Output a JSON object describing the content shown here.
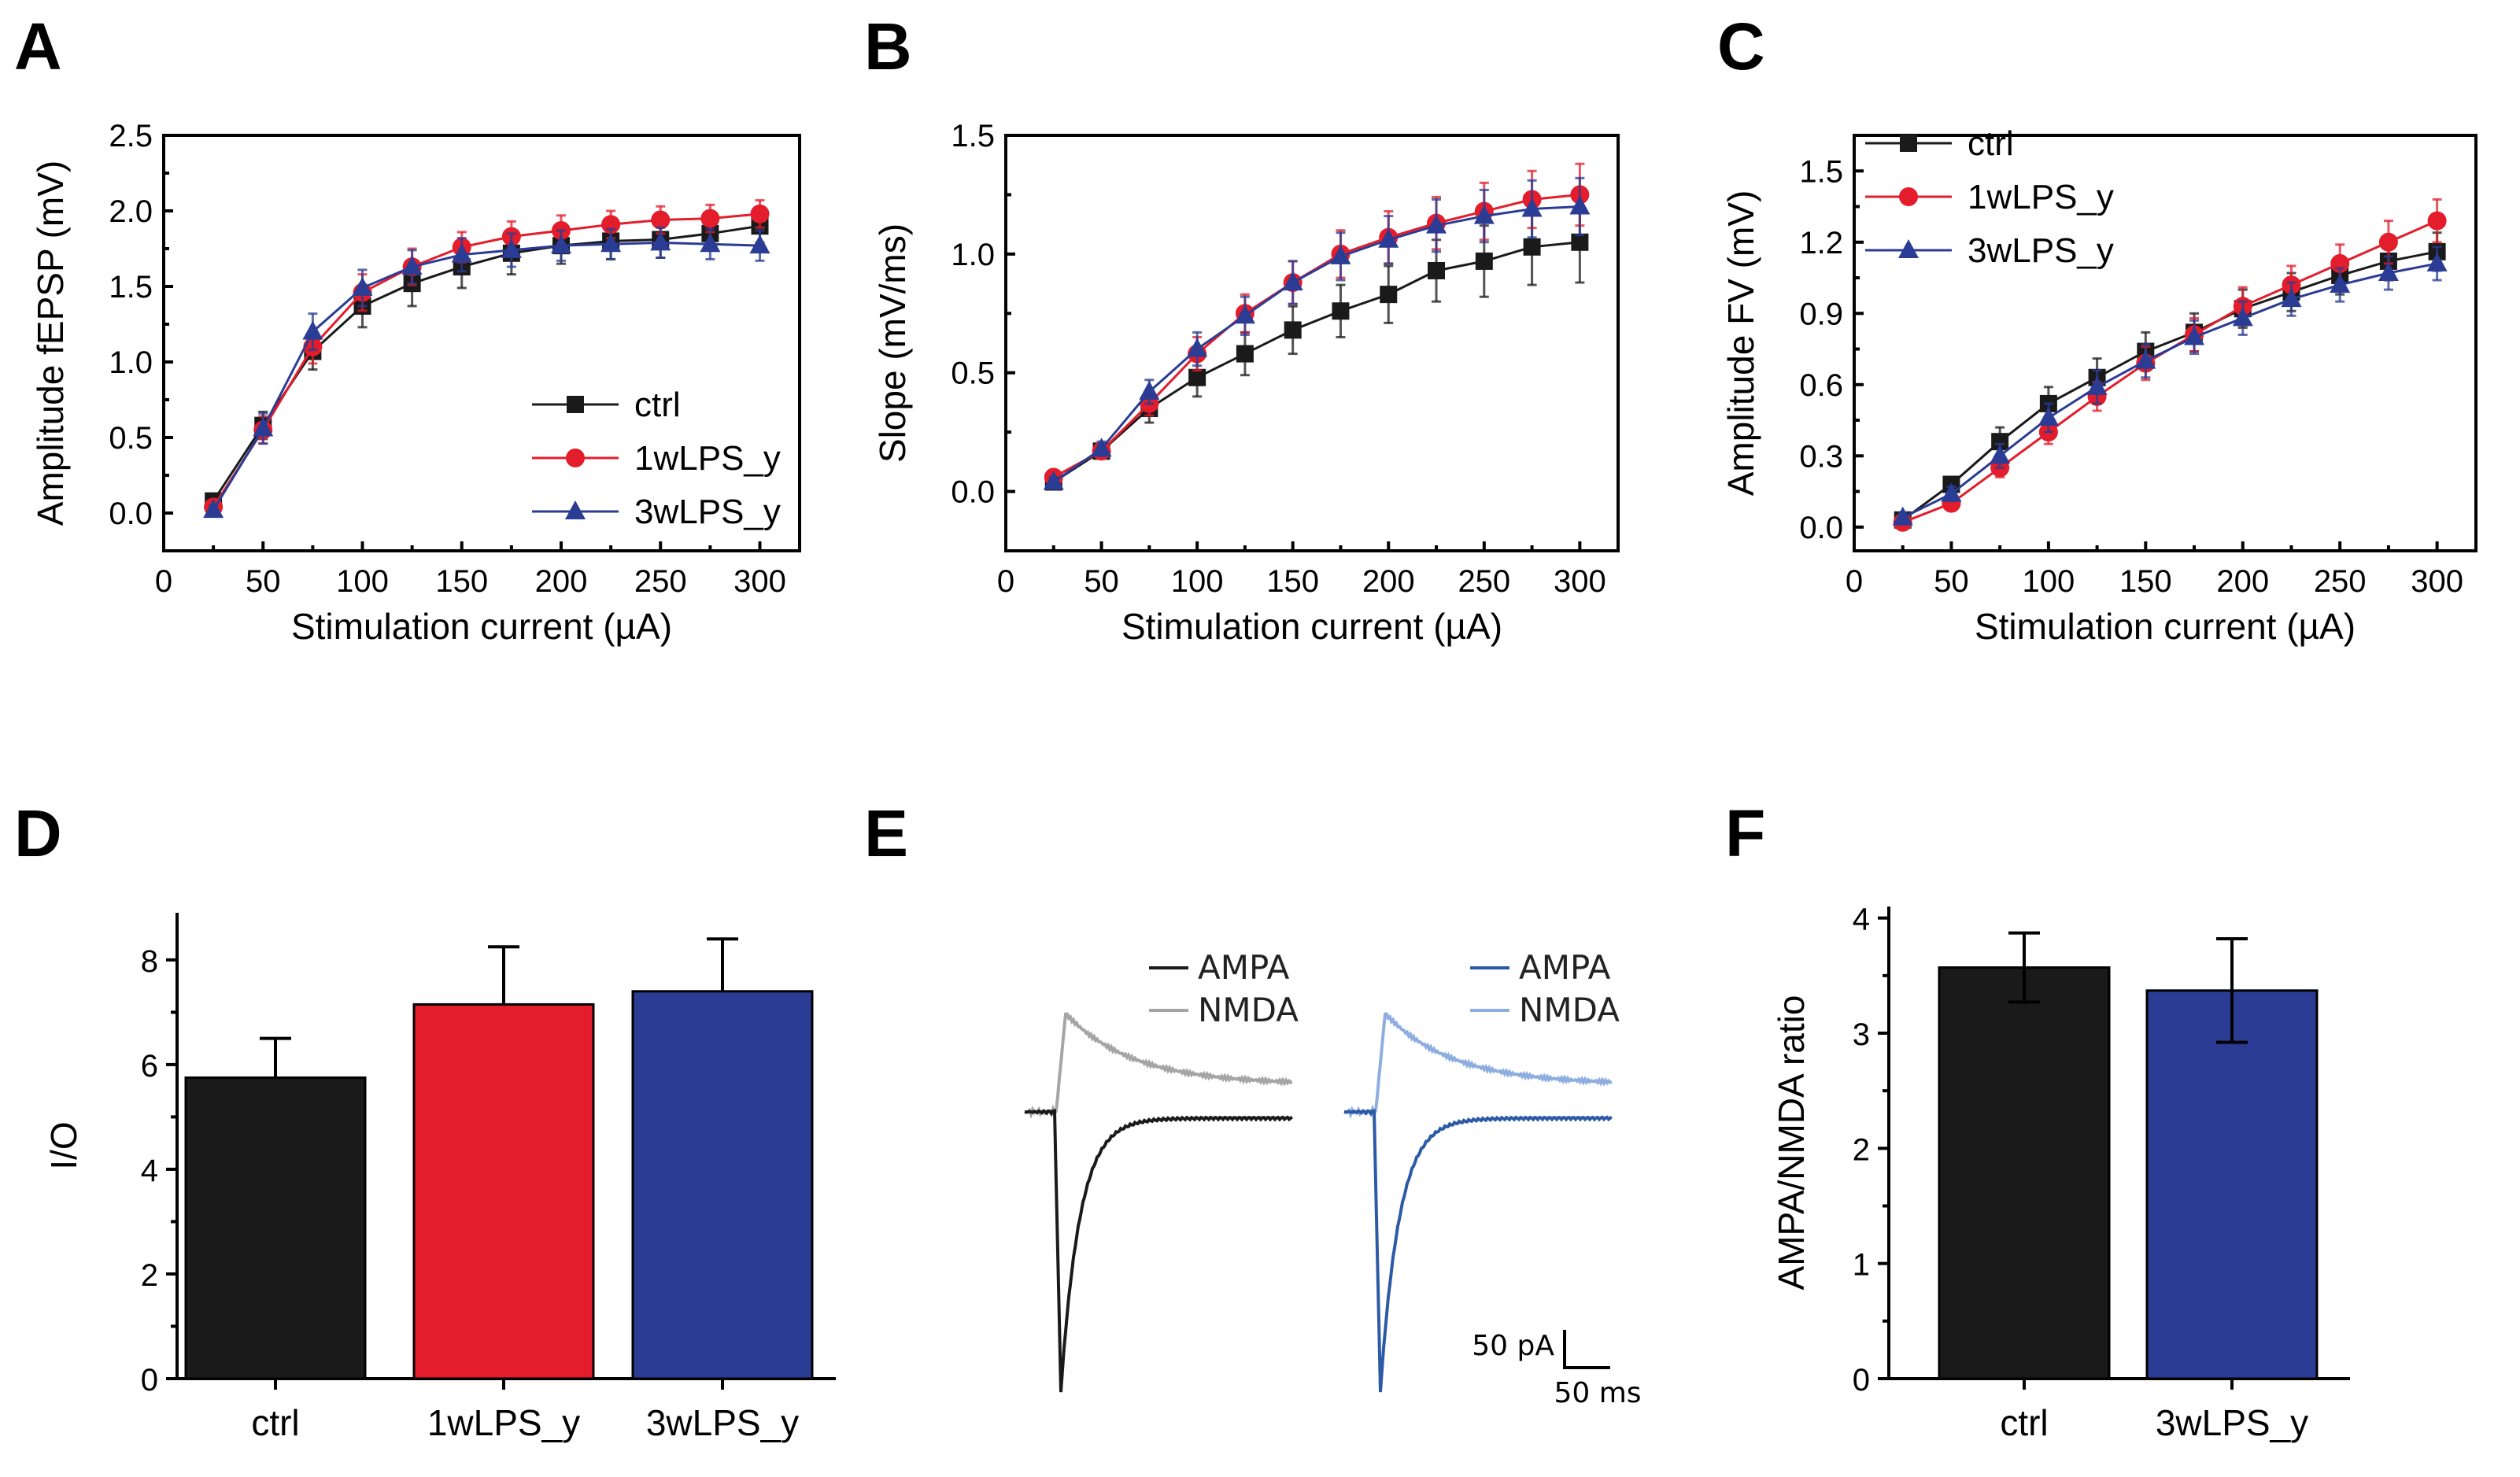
{
  "colors": {
    "ctrl": "#1a1a1a",
    "wk1": "#e31d2b",
    "wk3": "#2a3c94",
    "gray_nmda": "#a5a5a5",
    "lightblue_nmda": "#8faee0",
    "blue_ampa": "#2d5aa6"
  },
  "chart_data": [
    {
      "id": "A",
      "letter": "A",
      "type": "line",
      "xlabel": "Stimulation current (µA)",
      "ylabel": "Amplitude fEPSP (mV)",
      "xlim": [
        0,
        320
      ],
      "ylim": [
        -0.25,
        2.5
      ],
      "xticks": [
        0,
        50,
        100,
        150,
        200,
        250,
        300
      ],
      "xtick_labels": [
        "0",
        "50",
        "100",
        "150",
        "200",
        "250",
        "300"
      ],
      "yticks": [
        0,
        0.5,
        1,
        1.5,
        2,
        2.5
      ],
      "ytick_labels": [
        "0.0",
        "0.5",
        "1.0",
        "1.5",
        "2.0",
        "2.5"
      ],
      "x": [
        25,
        50,
        75,
        100,
        125,
        150,
        175,
        200,
        225,
        250,
        275,
        300
      ],
      "series": [
        {
          "name": "ctrl",
          "color_key": "ctrl",
          "marker": "square",
          "values": [
            0.08,
            0.58,
            1.07,
            1.37,
            1.52,
            1.63,
            1.72,
            1.77,
            1.8,
            1.81,
            1.85,
            1.9
          ],
          "errors": [
            0.03,
            0.09,
            0.12,
            0.14,
            0.15,
            0.14,
            0.14,
            0.12,
            0.12,
            0.12,
            0.11,
            0.11
          ]
        },
        {
          "name": "1wLPS_y",
          "color_key": "wk1",
          "marker": "circle",
          "values": [
            0.04,
            0.55,
            1.1,
            1.46,
            1.63,
            1.76,
            1.83,
            1.87,
            1.91,
            1.94,
            1.95,
            1.98
          ],
          "errors": [
            0.03,
            0.09,
            0.11,
            0.12,
            0.12,
            0.1,
            0.1,
            0.1,
            0.09,
            0.09,
            0.09,
            0.09
          ]
        },
        {
          "name": "3wLPS_y",
          "color_key": "wk3",
          "marker": "triangle",
          "values": [
            0.02,
            0.56,
            1.2,
            1.49,
            1.63,
            1.71,
            1.74,
            1.77,
            1.78,
            1.79,
            1.78,
            1.77
          ],
          "errors": [
            0.03,
            0.1,
            0.12,
            0.12,
            0.11,
            0.11,
            0.11,
            0.1,
            0.1,
            0.1,
            0.1,
            0.1
          ]
        }
      ],
      "legend_pos": "lower-right"
    },
    {
      "id": "B",
      "letter": "B",
      "type": "line",
      "xlabel": "Stimulation current (µA)",
      "ylabel": "Slope (mV/ms)",
      "xlim": [
        0,
        320
      ],
      "ylim": [
        -0.25,
        1.5
      ],
      "xticks": [
        0,
        50,
        100,
        150,
        200,
        250,
        300
      ],
      "xtick_labels": [
        "0",
        "50",
        "100",
        "150",
        "200",
        "250",
        "300"
      ],
      "yticks": [
        0,
        0.5,
        1,
        1.5
      ],
      "ytick_labels": [
        "0.0",
        "0.5",
        "1.0",
        "1.5"
      ],
      "x": [
        25,
        50,
        75,
        100,
        125,
        150,
        175,
        200,
        225,
        250,
        275,
        300
      ],
      "series": [
        {
          "name": "ctrl",
          "color_key": "ctrl",
          "marker": "square",
          "values": [
            0.04,
            0.17,
            0.35,
            0.48,
            0.58,
            0.68,
            0.76,
            0.83,
            0.93,
            0.97,
            1.03,
            1.05
          ],
          "errors": [
            0.02,
            0.03,
            0.06,
            0.08,
            0.09,
            0.1,
            0.11,
            0.12,
            0.13,
            0.15,
            0.16,
            0.17
          ]
        },
        {
          "name": "1wLPS_y",
          "color_key": "wk1",
          "marker": "circle",
          "values": [
            0.06,
            0.17,
            0.37,
            0.58,
            0.75,
            0.88,
            1.0,
            1.07,
            1.13,
            1.18,
            1.23,
            1.25
          ],
          "errors": [
            0.02,
            0.03,
            0.05,
            0.07,
            0.08,
            0.09,
            0.1,
            0.11,
            0.11,
            0.12,
            0.12,
            0.13
          ]
        },
        {
          "name": "3wLPS_y",
          "color_key": "wk3",
          "marker": "triangle",
          "values": [
            0.04,
            0.18,
            0.42,
            0.6,
            0.74,
            0.88,
            0.99,
            1.06,
            1.12,
            1.16,
            1.19,
            1.2
          ],
          "errors": [
            0.02,
            0.03,
            0.05,
            0.07,
            0.08,
            0.09,
            0.1,
            0.1,
            0.11,
            0.11,
            0.12,
            0.12
          ]
        }
      ],
      "legend_pos": "none"
    },
    {
      "id": "C",
      "letter": "C",
      "type": "line",
      "xlabel": "Stimulation current (µA)",
      "ylabel": "Amplitude FV (mV)",
      "xlim": [
        0,
        320
      ],
      "ylim": [
        -0.1,
        1.65
      ],
      "xticks": [
        0,
        50,
        100,
        150,
        200,
        250,
        300
      ],
      "xtick_labels": [
        "0",
        "50",
        "100",
        "150",
        "200",
        "250",
        "300"
      ],
      "yticks": [
        0,
        0.3,
        0.6,
        0.9,
        1.2,
        1.5
      ],
      "ytick_labels": [
        "0.0",
        "0.3",
        "0.6",
        "0.9",
        "1.2",
        "1.5"
      ],
      "x": [
        25,
        50,
        75,
        100,
        125,
        150,
        175,
        200,
        225,
        250,
        275,
        300
      ],
      "series": [
        {
          "name": "ctrl",
          "color_key": "ctrl",
          "marker": "square",
          "values": [
            0.03,
            0.18,
            0.36,
            0.52,
            0.63,
            0.74,
            0.82,
            0.92,
            0.99,
            1.06,
            1.12,
            1.16
          ],
          "errors": [
            0.02,
            0.03,
            0.06,
            0.07,
            0.08,
            0.08,
            0.08,
            0.08,
            0.08,
            0.08,
            0.08,
            0.08
          ]
        },
        {
          "name": "1wLPS_y",
          "color_key": "wk1",
          "marker": "circle",
          "values": [
            0.02,
            0.1,
            0.25,
            0.4,
            0.55,
            0.69,
            0.81,
            0.93,
            1.02,
            1.11,
            1.2,
            1.29
          ],
          "errors": [
            0.02,
            0.03,
            0.04,
            0.05,
            0.06,
            0.07,
            0.07,
            0.08,
            0.08,
            0.08,
            0.09,
            0.09
          ]
        },
        {
          "name": "3wLPS_y",
          "color_key": "wk3",
          "marker": "triangle",
          "values": [
            0.04,
            0.14,
            0.3,
            0.46,
            0.59,
            0.7,
            0.8,
            0.88,
            0.96,
            1.02,
            1.07,
            1.11
          ],
          "errors": [
            0.02,
            0.03,
            0.05,
            0.06,
            0.07,
            0.07,
            0.07,
            0.07,
            0.07,
            0.07,
            0.07,
            0.07
          ]
        }
      ],
      "legend_pos": "top-left"
    },
    {
      "id": "D",
      "letter": "D",
      "type": "bar",
      "xlabel": "",
      "ylabel": "I/O",
      "ylim": [
        0,
        8.9
      ],
      "yticks": [
        0,
        2,
        4,
        6,
        8
      ],
      "ytick_labels": [
        "0",
        "2",
        "4",
        "6",
        "8"
      ],
      "categories": [
        "ctrl",
        "1wLPS_y",
        "3wLPS_y"
      ],
      "values": [
        5.75,
        7.15,
        7.4
      ],
      "errors": [
        0.75,
        1.1,
        1.0
      ],
      "bar_color_keys": [
        "ctrl",
        "wk1",
        "wk3"
      ]
    },
    {
      "id": "F",
      "letter": "F",
      "type": "bar",
      "xlabel": "",
      "ylabel": "AMPA/NMDA  ratio",
      "ylim": [
        0,
        4.1
      ],
      "yticks": [
        0,
        1,
        2,
        3,
        4
      ],
      "ytick_labels": [
        "0",
        "1",
        "2",
        "3",
        "4"
      ],
      "categories": [
        "ctrl",
        "3wLPS_y"
      ],
      "values": [
        3.57,
        3.37
      ],
      "errors": [
        0.3,
        0.45
      ],
      "bar_color_keys": [
        "ctrl",
        "wk3"
      ]
    }
  ],
  "traces": {
    "letter": "E",
    "left_legend": [
      "AMPA",
      "NMDA"
    ],
    "right_legend": [
      "AMPA",
      "NMDA"
    ],
    "scale_current": "50 pA",
    "scale_time": "50 ms"
  }
}
